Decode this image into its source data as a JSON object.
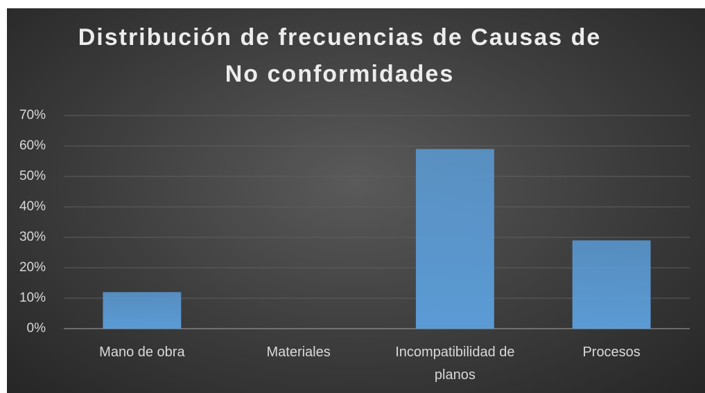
{
  "chart_data": {
    "type": "bar",
    "title": "Distribución de frecuencias de Causas de No conformidades",
    "categories": [
      "Mano de obra",
      "Materiales",
      "Incompatibilidad de planos",
      "Procesos"
    ],
    "values": [
      12,
      0,
      59,
      29
    ],
    "color": "#5b9bd5",
    "ylim": [
      0,
      70
    ],
    "yticks": [
      {
        "value": 0,
        "label": "0%"
      },
      {
        "value": 10,
        "label": "10%"
      },
      {
        "value": 20,
        "label": "20%"
      },
      {
        "value": 30,
        "label": "30%"
      },
      {
        "value": 40,
        "label": "40%"
      },
      {
        "value": 50,
        "label": "50%"
      },
      {
        "value": 60,
        "label": "60%"
      },
      {
        "value": 70,
        "label": "70%"
      }
    ],
    "grid": true
  }
}
